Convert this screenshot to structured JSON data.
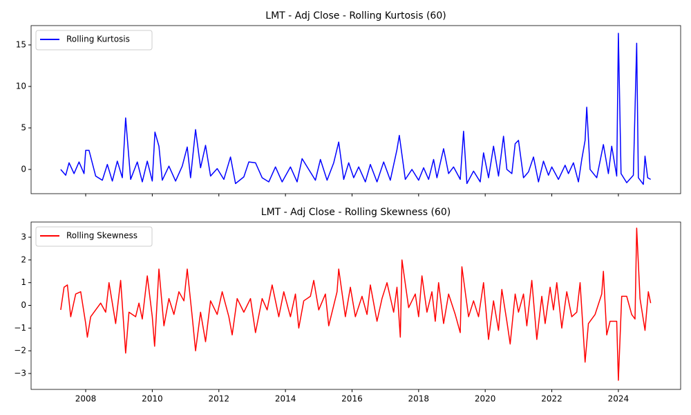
{
  "chart_data": [
    {
      "type": "line",
      "title": "LMT - Adj Close - Rolling Kurtosis (60)",
      "legend": "upper left",
      "grid": false,
      "xlim": [
        2006.36,
        2025.87
      ],
      "xticks": [
        2008,
        2010,
        2012,
        2014,
        2016,
        2018,
        2020,
        2022,
        2024
      ],
      "show_xtick_labels": false,
      "ylim": [
        -2.92,
        17.33
      ],
      "yticks": [
        0,
        5,
        10,
        15
      ],
      "x": [
        2007.25,
        2007.4,
        2007.5,
        2007.65,
        2007.8,
        2007.95,
        2008.0,
        2008.1,
        2008.3,
        2008.5,
        2008.65,
        2008.8,
        2008.95,
        2009.1,
        2009.2,
        2009.35,
        2009.55,
        2009.7,
        2009.85,
        2010.0,
        2010.08,
        2010.2,
        2010.3,
        2010.5,
        2010.7,
        2010.9,
        2011.05,
        2011.15,
        2011.3,
        2011.45,
        2011.6,
        2011.75,
        2011.95,
        2012.15,
        2012.35,
        2012.5,
        2012.75,
        2012.9,
        2013.1,
        2013.3,
        2013.5,
        2013.7,
        2013.9,
        2014.15,
        2014.35,
        2014.5,
        2014.7,
        2014.9,
        2015.05,
        2015.25,
        2015.45,
        2015.6,
        2015.75,
        2015.9,
        2016.05,
        2016.2,
        2016.4,
        2016.55,
        2016.75,
        2016.95,
        2017.15,
        2017.35,
        2017.42,
        2017.6,
        2017.8,
        2018.0,
        2018.15,
        2018.3,
        2018.45,
        2018.55,
        2018.75,
        2018.9,
        2019.05,
        2019.25,
        2019.35,
        2019.45,
        2019.65,
        2019.85,
        2019.95,
        2020.1,
        2020.25,
        2020.4,
        2020.55,
        2020.65,
        2020.8,
        2020.9,
        2021.0,
        2021.15,
        2021.3,
        2021.45,
        2021.6,
        2021.75,
        2021.9,
        2022.0,
        2022.2,
        2022.4,
        2022.5,
        2022.65,
        2022.8,
        2022.9,
        2023.0,
        2023.05,
        2023.15,
        2023.35,
        2023.55,
        2023.7,
        2023.8,
        2023.95,
        2024.0,
        2024.08,
        2024.25,
        2024.45,
        2024.55,
        2024.6,
        2024.75,
        2024.8,
        2024.88,
        2024.97
      ],
      "series": [
        {
          "name": "Rolling Kurtosis",
          "color": "#0000ff",
          "values": [
            0,
            -0.7,
            0.8,
            -0.5,
            0.9,
            -0.5,
            2.3,
            2.3,
            -0.8,
            -1.3,
            0.6,
            -1.4,
            1.0,
            -1.0,
            6.2,
            -1.2,
            0.9,
            -1.5,
            1.0,
            -1.4,
            4.5,
            2.8,
            -1.3,
            0.4,
            -1.4,
            0.4,
            2.7,
            -1.0,
            4.8,
            0.2,
            2.9,
            -0.8,
            0.1,
            -1.2,
            1.5,
            -1.7,
            -0.9,
            0.9,
            0.8,
            -1.0,
            -1.5,
            0.3,
            -1.5,
            0.3,
            -1.5,
            1.3,
            0.0,
            -1.3,
            1.2,
            -1.3,
            0.8,
            3.3,
            -1.2,
            0.8,
            -1.0,
            0.3,
            -1.5,
            0.6,
            -1.5,
            0.9,
            -1.3,
            2.4,
            4.1,
            -1.2,
            0.0,
            -1.3,
            0.2,
            -1.2,
            1.2,
            -1.0,
            2.5,
            -0.5,
            0.3,
            -1.2,
            4.6,
            -1.7,
            -0.2,
            -1.5,
            2.0,
            -1.0,
            2.8,
            -0.8,
            4.0,
            0.0,
            -0.5,
            3.1,
            3.5,
            -1.0,
            -0.3,
            1.5,
            -1.5,
            1.0,
            -0.7,
            0.3,
            -1.2,
            0.5,
            -0.5,
            0.8,
            -1.5,
            1.2,
            3.5,
            7.5,
            0.0,
            -1.0,
            3.0,
            -0.5,
            2.8,
            -0.8,
            16.4,
            -0.5,
            -1.6,
            -0.7,
            15.2,
            -1.0,
            -1.8,
            1.6,
            -1.0,
            -1.2
          ]
        }
      ]
    },
    {
      "type": "line",
      "title": "LMT - Adj Close - Rolling Skewness (60)",
      "legend": "upper left",
      "grid": false,
      "xlim": [
        2006.36,
        2025.87
      ],
      "xticks": [
        2008,
        2010,
        2012,
        2014,
        2016,
        2018,
        2020,
        2022,
        2024
      ],
      "show_xtick_labels": true,
      "ylim": [
        -3.7,
        3.67
      ],
      "yticks": [
        {
          "value": -3,
          "label": "−3"
        },
        {
          "value": -2,
          "label": "−2"
        },
        {
          "value": -1,
          "label": "−1"
        },
        0,
        1,
        2,
        3
      ],
      "x": [
        2007.25,
        2007.35,
        2007.45,
        2007.55,
        2007.7,
        2007.85,
        2008.0,
        2008.05,
        2008.15,
        2008.3,
        2008.45,
        2008.6,
        2008.7,
        2008.9,
        2009.05,
        2009.2,
        2009.3,
        2009.5,
        2009.6,
        2009.7,
        2009.85,
        2010.0,
        2010.07,
        2010.2,
        2010.35,
        2010.5,
        2010.65,
        2010.8,
        2010.95,
        2011.05,
        2011.2,
        2011.3,
        2011.45,
        2011.6,
        2011.75,
        2011.95,
        2012.1,
        2012.3,
        2012.4,
        2012.55,
        2012.75,
        2012.95,
        2013.1,
        2013.3,
        2013.45,
        2013.6,
        2013.8,
        2013.95,
        2014.15,
        2014.3,
        2014.4,
        2014.55,
        2014.75,
        2014.85,
        2015.0,
        2015.2,
        2015.3,
        2015.55,
        2015.6,
        2015.8,
        2015.95,
        2016.1,
        2016.3,
        2016.45,
        2016.55,
        2016.75,
        2016.9,
        2017.05,
        2017.25,
        2017.35,
        2017.45,
        2017.5,
        2017.7,
        2017.9,
        2018.0,
        2018.1,
        2018.25,
        2018.4,
        2018.5,
        2018.6,
        2018.75,
        2018.9,
        2019.1,
        2019.25,
        2019.3,
        2019.5,
        2019.65,
        2019.8,
        2019.95,
        2020.1,
        2020.25,
        2020.4,
        2020.5,
        2020.65,
        2020.75,
        2020.9,
        2021.0,
        2021.15,
        2021.25,
        2021.4,
        2021.55,
        2021.7,
        2021.8,
        2021.95,
        2022.05,
        2022.15,
        2022.3,
        2022.45,
        2022.6,
        2022.75,
        2022.85,
        2023.0,
        2023.1,
        2023.3,
        2023.5,
        2023.55,
        2023.65,
        2023.75,
        2023.95,
        2024.0,
        2024.1,
        2024.25,
        2024.4,
        2024.5,
        2024.55,
        2024.65,
        2024.8,
        2024.9,
        2024.97
      ],
      "series": [
        {
          "name": "Rolling Skewness",
          "color": "#ff0000",
          "values": [
            -0.2,
            0.8,
            0.9,
            -0.5,
            0.5,
            0.6,
            -0.8,
            -1.4,
            -0.5,
            -0.2,
            0.1,
            -0.3,
            1.0,
            -0.8,
            1.1,
            -2.1,
            -0.3,
            -0.5,
            0.1,
            -0.6,
            1.3,
            -0.5,
            -1.8,
            1.6,
            -0.9,
            0.3,
            -0.4,
            0.6,
            0.2,
            1.6,
            -0.5,
            -2.0,
            -0.3,
            -1.6,
            0.2,
            -0.4,
            0.6,
            -0.5,
            -1.3,
            0.3,
            -0.3,
            0.3,
            -1.2,
            0.3,
            -0.2,
            0.9,
            -0.5,
            0.6,
            -0.5,
            0.5,
            -1.0,
            0.2,
            0.4,
            1.1,
            -0.2,
            0.5,
            -0.9,
            0.6,
            1.6,
            -0.5,
            0.8,
            -0.5,
            0.4,
            -0.4,
            0.9,
            -0.7,
            0.3,
            1.0,
            -0.3,
            0.8,
            -1.4,
            2.0,
            -0.1,
            0.5,
            -0.5,
            1.3,
            -0.3,
            0.6,
            -0.7,
            1.0,
            -0.8,
            0.5,
            -0.4,
            -1.2,
            1.7,
            -0.5,
            0.2,
            -0.5,
            1.0,
            -1.5,
            0.2,
            -1.1,
            0.7,
            -0.7,
            -1.7,
            0.5,
            -0.3,
            0.5,
            -0.9,
            1.1,
            -1.5,
            0.4,
            -0.8,
            0.8,
            -0.2,
            1.0,
            -1.0,
            0.6,
            -0.5,
            -0.3,
            1.0,
            -2.5,
            -0.8,
            -0.4,
            0.5,
            1.5,
            -1.3,
            -0.7,
            -0.7,
            -3.3,
            0.4,
            0.4,
            -0.4,
            -0.6,
            3.4,
            0.3,
            -1.1,
            0.6,
            0.1
          ]
        }
      ]
    }
  ]
}
